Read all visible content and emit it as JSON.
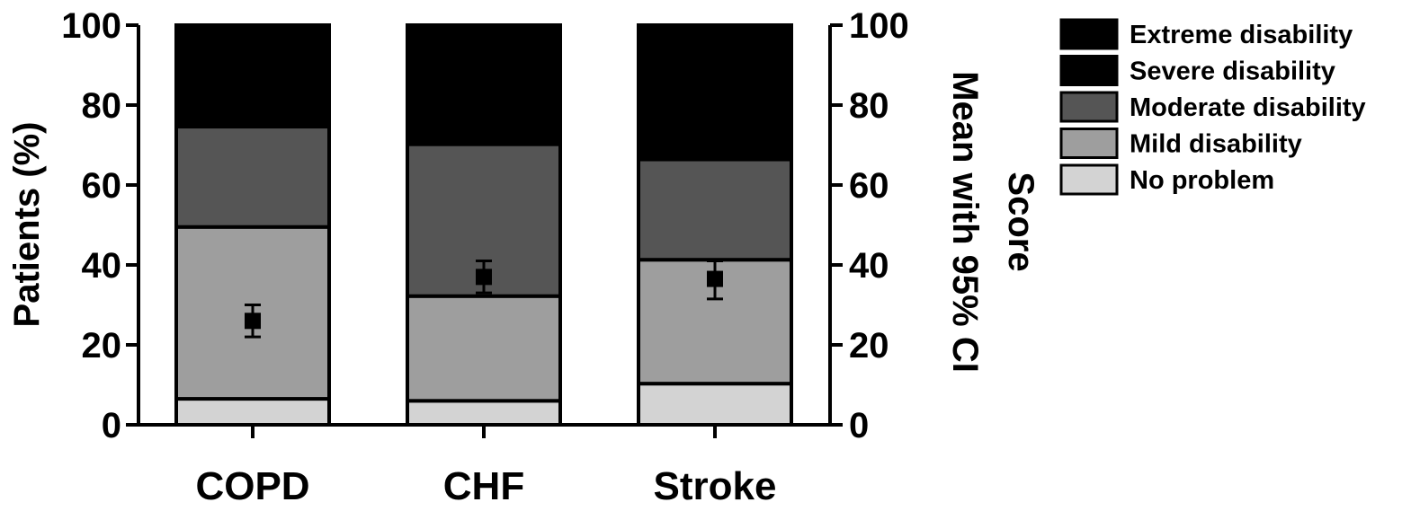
{
  "chart_data": {
    "type": "bar",
    "stacked": true,
    "categories": [
      "COPD",
      "CHF",
      "Stroke"
    ],
    "ylabel": "Patients (%)",
    "ylim": [
      0,
      100
    ],
    "yticks": [
      "0",
      "20",
      "40",
      "60",
      "80",
      "100"
    ],
    "y2label_lines": [
      "Score",
      "Mean with 95% CI"
    ],
    "y2lim": [
      0,
      100
    ],
    "y2ticks": [
      "0",
      "20",
      "40",
      "60",
      "80",
      "100"
    ],
    "legend_position": "top-right",
    "series": [
      {
        "name": "No problem",
        "color": "#d3d3d3",
        "values": [
          6.5,
          6,
          10.3
        ]
      },
      {
        "name": "Mild disability",
        "color": "#9e9e9e",
        "values": [
          43,
          26.2,
          31
        ]
      },
      {
        "name": "Moderate disability",
        "color": "#555555",
        "values": [
          25.1,
          38,
          25.1
        ]
      },
      {
        "name": "Severe disability",
        "color": "#000000",
        "values": [
          25.4,
          29.8,
          33.6
        ]
      },
      {
        "name": "Extreme disability",
        "color": "#000000",
        "values": [
          0,
          0,
          0
        ]
      }
    ],
    "legend_order": [
      "Extreme disability",
      "Severe disability",
      "Moderate disability",
      "Mild disability",
      "No problem"
    ],
    "score_points": [
      {
        "category": "COPD",
        "mean": 26,
        "ci": [
          22,
          30
        ]
      },
      {
        "category": "CHF",
        "mean": 37,
        "ci": [
          33,
          41
        ]
      },
      {
        "category": "Stroke",
        "mean": 36.5,
        "ci": [
          31.5,
          41
        ]
      }
    ]
  }
}
